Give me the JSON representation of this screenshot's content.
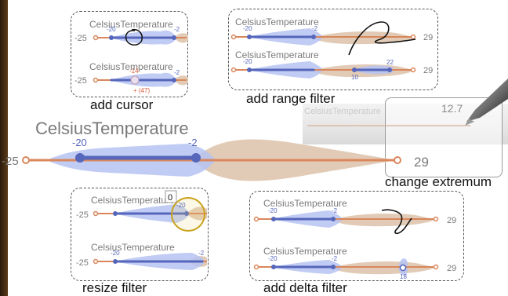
{
  "colors": {
    "tan": "#e2cbb6",
    "blue_fill": "#b6c3f2",
    "blue_line": "#5566bb",
    "orange_line": "#d9875b",
    "text_gray": "#7a7a7a",
    "tick_blue": "#5566bb",
    "delta_red": "#d9583a",
    "cursor_yellow": "#c8a21a"
  },
  "variable": "CelsiusTemperature",
  "main": {
    "min_label": "-25",
    "max_label": "29",
    "range_low": "-20",
    "range_high": "-2"
  },
  "panels": {
    "cursor": {
      "caption": "add cursor",
      "row1": {
        "title": "CelsiusTemperature",
        "min": "-25",
        "lo": "-20",
        "hi": "-2"
      },
      "row2": {
        "title": "CelsiusTemperature",
        "min": "-25",
        "hi": "-2",
        "cursor_value": "-14",
        "delta": "+ (47)"
      }
    },
    "range": {
      "caption": "add range filter",
      "row1": {
        "title": "CelsiusTemperature",
        "lo": "-20",
        "hi": "-2",
        "max": "29"
      },
      "row2": {
        "title": "CelsiusTemperature",
        "lo": "-20",
        "f_lo": "10",
        "f_hi": "22",
        "max": "29"
      }
    },
    "extremum": {
      "caption": "change extremum",
      "new_max": "12.7",
      "max": "29",
      "faded_title": "CelsiusTemperature"
    },
    "resize": {
      "caption": "resize filter",
      "row1": {
        "title": "CelsiusTemperature",
        "min": "-25",
        "lo": "-20",
        "badge": "0"
      },
      "row2": {
        "title": "CelsiusTemperature",
        "min": "-25",
        "lo": "-20",
        "hi": "-2"
      }
    },
    "delta": {
      "caption": "add delta filter",
      "row1": {
        "title": "CelsiusTemperature",
        "lo": "-20",
        "hi": "-2",
        "max": "29"
      },
      "row2": {
        "title": "CelsiusTemperature",
        "lo": "-20",
        "hi": "-2",
        "delta_value": "18",
        "max": "29"
      }
    }
  }
}
